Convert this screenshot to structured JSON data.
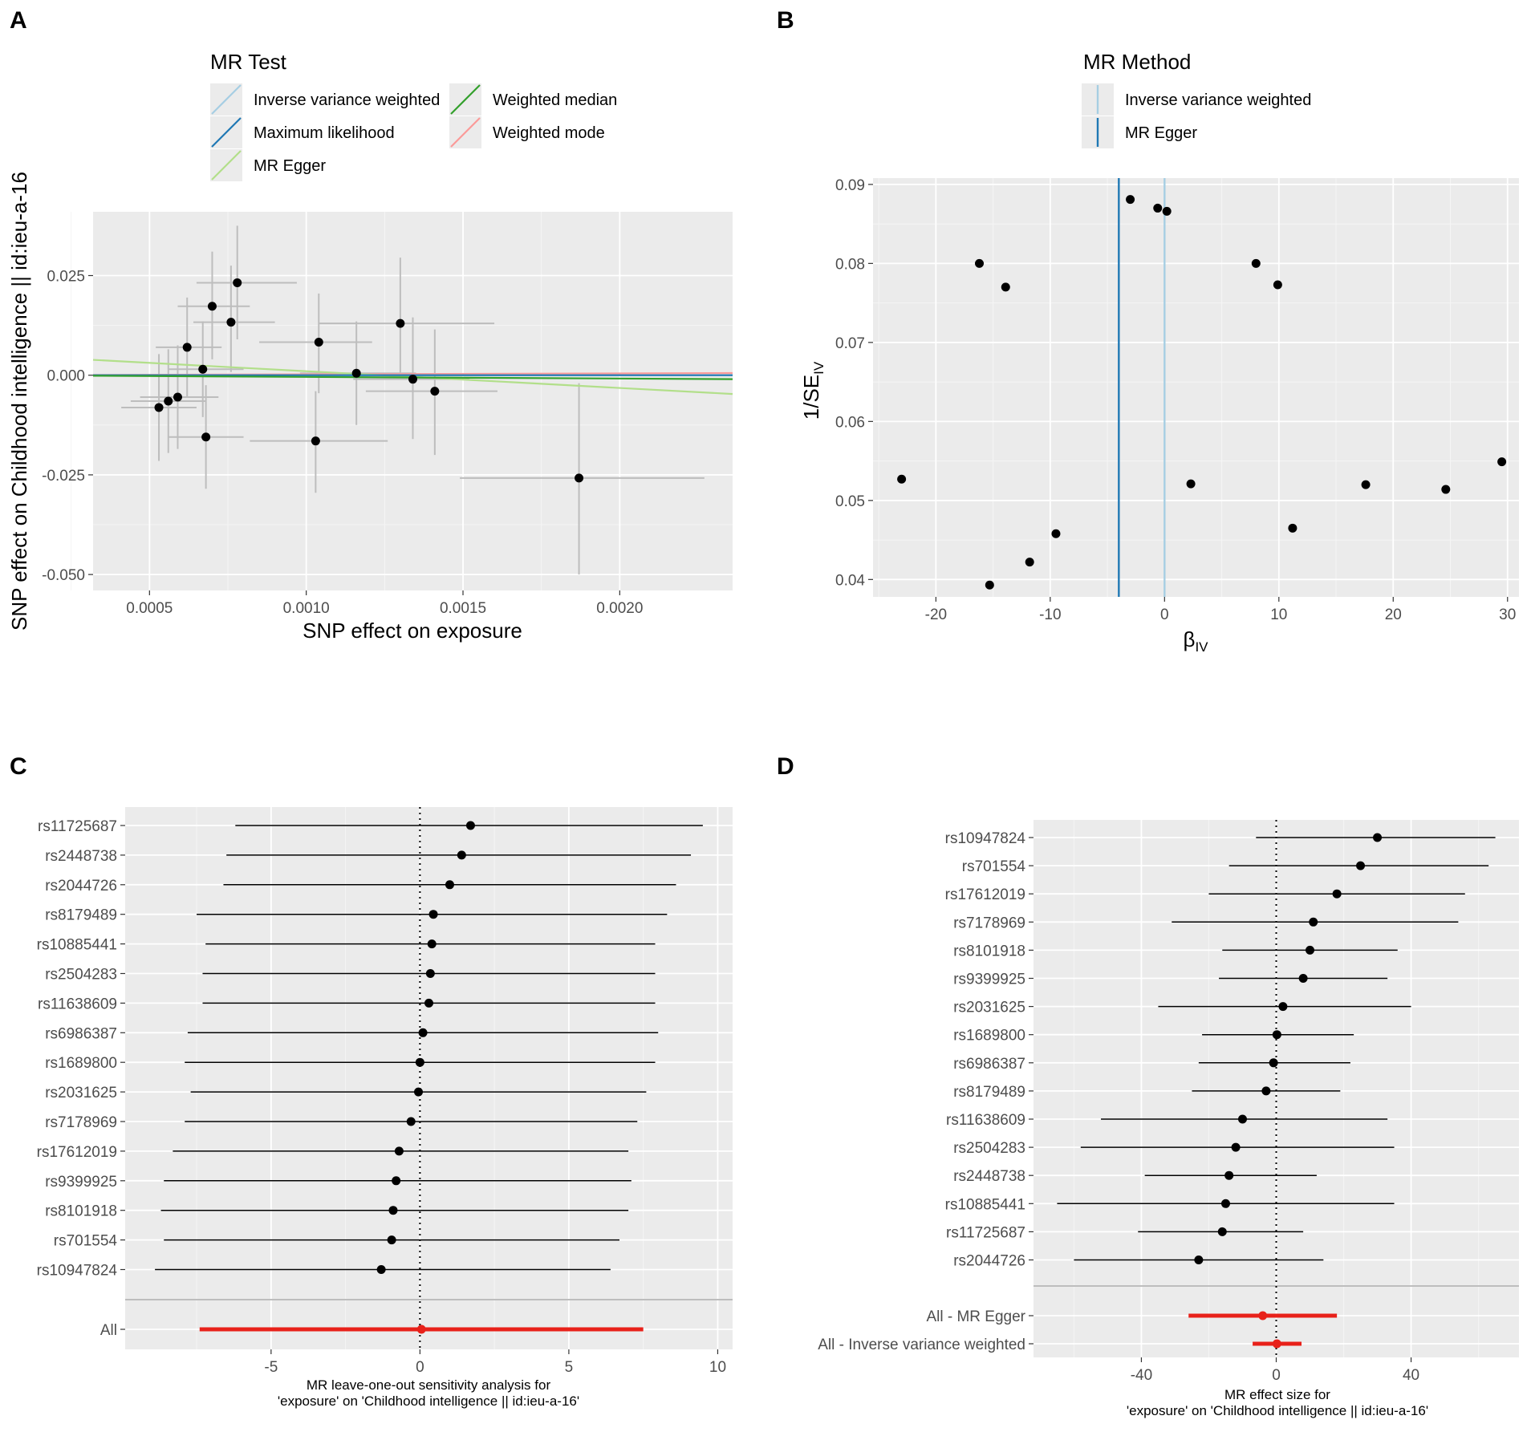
{
  "panels": {
    "A": {
      "letter": "A",
      "legend_title": "MR Test",
      "legend": [
        {
          "name": "Inverse variance weighted",
          "color": "#a6cee3"
        },
        {
          "name": "Maximum likelihood",
          "color": "#1f78b4"
        },
        {
          "name": "MR Egger",
          "color": "#b2df8a"
        },
        {
          "name": "Weighted median",
          "color": "#33a02c"
        },
        {
          "name": "Weighted mode",
          "color": "#fb9a99"
        }
      ],
      "xlabel": "SNP effect on exposure",
      "ylabel": "SNP effect on Childhood intelligence || id:ieu-a-16",
      "xlim": [
        0.00032,
        0.00236
      ],
      "ylim": [
        -0.054,
        0.041
      ],
      "xticks": [
        0.0005,
        0.001,
        0.0015,
        0.002
      ],
      "xtick_labels": [
        "0.0005",
        "0.0010",
        "0.0015",
        "0.0020"
      ],
      "yticks": [
        0.025,
        0.0,
        -0.025,
        -0.05
      ],
      "ytick_labels": [
        "0.025",
        "0.000",
        "-0.025",
        "-0.050"
      ]
    },
    "B": {
      "letter": "B",
      "legend_title": "MR Method",
      "legend": [
        {
          "name": "Inverse variance weighted",
          "color": "#a6cee3"
        },
        {
          "name": "MR Egger",
          "color": "#1f78b4"
        }
      ],
      "xlabel_main": "β",
      "xlabel_sub": "IV",
      "ylabel_main": "1/SE",
      "ylabel_sub": "IV",
      "xlim": [
        -25.5,
        31
      ],
      "ylim": [
        0.0378,
        0.0908
      ],
      "xticks": [
        -20,
        -10,
        0,
        10,
        20,
        30
      ],
      "xtick_labels": [
        "-20",
        "-10",
        "0",
        "10",
        "20",
        "30"
      ],
      "yticks": [
        0.04,
        0.05,
        0.06,
        0.07,
        0.08,
        0.09
      ],
      "ytick_labels": [
        "0.04",
        "0.05",
        "0.06",
        "0.07",
        "0.08",
        "0.09"
      ]
    },
    "C": {
      "letter": "C",
      "caption_line1": "MR leave-one-out sensitivity analysis for",
      "caption_line2": "'exposure' on 'Childhood intelligence || id:ieu-a-16'",
      "xlim": [
        -9.9,
        10.5
      ],
      "xticks": [
        -5,
        0,
        5,
        10
      ],
      "xtick_labels": [
        "-5",
        "0",
        "5",
        "10"
      ]
    },
    "D": {
      "letter": "D",
      "caption_line1": "MR effect size for",
      "caption_line2": "'exposure' on 'Childhood intelligence || id:ieu-a-16'",
      "xlim": [
        -72,
        72
      ],
      "xticks": [
        -40,
        0,
        40
      ],
      "xtick_labels": [
        "-40",
        "0",
        "40"
      ]
    }
  },
  "chart_data": [
    {
      "panel": "A",
      "type": "scatter",
      "title": "",
      "xlabel": "SNP effect on exposure",
      "ylabel": "SNP effect on Childhood intelligence || id:ieu-a-16",
      "points": [
        {
          "x": 0.00053,
          "y": -0.0081,
          "xlo": 0.00041,
          "xhi": 0.00065,
          "ylo": -0.0215,
          "yhi": 0.0053
        },
        {
          "x": 0.00056,
          "y": -0.0065,
          "xlo": 0.00044,
          "xhi": 0.00068,
          "ylo": -0.0195,
          "yhi": 0.0065
        },
        {
          "x": 0.00059,
          "y": -0.0055,
          "xlo": 0.00047,
          "xhi": 0.00072,
          "ylo": -0.0185,
          "yhi": 0.0075
        },
        {
          "x": 0.00062,
          "y": 0.007,
          "xlo": 0.00052,
          "xhi": 0.00073,
          "ylo": -0.0055,
          "yhi": 0.0195
        },
        {
          "x": 0.00067,
          "y": 0.0015,
          "xlo": 0.00056,
          "xhi": 0.0008,
          "ylo": -0.0105,
          "yhi": 0.0135
        },
        {
          "x": 0.00068,
          "y": -0.0155,
          "xlo": 0.00056,
          "xhi": 0.0008,
          "ylo": -0.0285,
          "yhi": -0.0025
        },
        {
          "x": 0.0007,
          "y": 0.0173,
          "xlo": 0.00059,
          "xhi": 0.00082,
          "ylo": 0.004,
          "yhi": 0.031
        },
        {
          "x": 0.00076,
          "y": 0.0133,
          "xlo": 0.00064,
          "xhi": 0.0009,
          "ylo": 0.0008,
          "yhi": 0.0275
        },
        {
          "x": 0.00078,
          "y": 0.0232,
          "xlo": 0.00065,
          "xhi": 0.00097,
          "ylo": 0.009,
          "yhi": 0.0375
        },
        {
          "x": 0.00103,
          "y": -0.0165,
          "xlo": 0.00082,
          "xhi": 0.00126,
          "ylo": -0.0295,
          "yhi": -0.004
        },
        {
          "x": 0.00104,
          "y": 0.0083,
          "xlo": 0.00085,
          "xhi": 0.00121,
          "ylo": -0.0045,
          "yhi": 0.0205
        },
        {
          "x": 0.00116,
          "y": 0.0005,
          "xlo": 0.00098,
          "xhi": 0.00135,
          "ylo": -0.0125,
          "yhi": 0.0135
        },
        {
          "x": 0.0013,
          "y": 0.013,
          "xlo": 0.00104,
          "xhi": 0.0016,
          "ylo": 0.0003,
          "yhi": 0.0295
        },
        {
          "x": 0.00134,
          "y": -0.001,
          "xlo": 0.00115,
          "xhi": 0.00152,
          "ylo": -0.016,
          "yhi": 0.0145
        },
        {
          "x": 0.00141,
          "y": -0.004,
          "xlo": 0.00119,
          "xhi": 0.00161,
          "ylo": -0.02,
          "yhi": 0.0115
        },
        {
          "x": 0.00187,
          "y": -0.0258,
          "xlo": 0.00149,
          "xhi": 0.00227,
          "ylo": -0.05,
          "yhi": -0.002
        }
      ],
      "lines": [
        {
          "name": "Inverse variance weighted",
          "intercept": 0,
          "slope": 0.0
        },
        {
          "name": "Maximum likelihood",
          "intercept": 0,
          "slope": 0.0
        },
        {
          "name": "MR Egger",
          "intercept": 0.0052,
          "slope": -4.2
        },
        {
          "name": "Weighted median",
          "intercept": 0,
          "slope": -0.42
        },
        {
          "name": "Weighted mode",
          "intercept": 0,
          "slope": 0.23
        }
      ]
    },
    {
      "panel": "B",
      "type": "scatter",
      "title": "",
      "xlabel": "βIV",
      "ylabel": "1/SEIV",
      "points": [
        {
          "x": -23.0,
          "y": 0.0527
        },
        {
          "x": -16.2,
          "y": 0.08
        },
        {
          "x": -15.3,
          "y": 0.0393
        },
        {
          "x": -13.9,
          "y": 0.077
        },
        {
          "x": -11.8,
          "y": 0.0422
        },
        {
          "x": -9.5,
          "y": 0.0458
        },
        {
          "x": -3.0,
          "y": 0.0881
        },
        {
          "x": -0.6,
          "y": 0.087
        },
        {
          "x": 0.2,
          "y": 0.0866
        },
        {
          "x": 2.3,
          "y": 0.0521
        },
        {
          "x": 8.0,
          "y": 0.08
        },
        {
          "x": 9.9,
          "y": 0.0773
        },
        {
          "x": 11.2,
          "y": 0.0465
        },
        {
          "x": 17.6,
          "y": 0.052
        },
        {
          "x": 24.6,
          "y": 0.0514
        },
        {
          "x": 29.5,
          "y": 0.0549
        }
      ],
      "vlines": [
        {
          "name": "MR Egger",
          "x": -4.0
        },
        {
          "name": "Inverse variance weighted",
          "x": 0.0
        }
      ]
    },
    {
      "panel": "C",
      "type": "forest",
      "title": "MR leave-one-out sensitivity analysis for 'exposure' on 'Childhood intelligence || id:ieu-a-16'",
      "rows": [
        {
          "label": "rs11725687",
          "est": 1.7,
          "lo": -6.2,
          "hi": 9.5
        },
        {
          "label": "rs2448738",
          "est": 1.4,
          "lo": -6.5,
          "hi": 9.1
        },
        {
          "label": "rs2044726",
          "est": 1.0,
          "lo": -6.6,
          "hi": 8.6
        },
        {
          "label": "rs8179489",
          "est": 0.45,
          "lo": -7.5,
          "hi": 8.3
        },
        {
          "label": "rs10885441",
          "est": 0.4,
          "lo": -7.2,
          "hi": 7.9
        },
        {
          "label": "rs2504283",
          "est": 0.35,
          "lo": -7.3,
          "hi": 7.9
        },
        {
          "label": "rs11638609",
          "est": 0.3,
          "lo": -7.3,
          "hi": 7.9
        },
        {
          "label": "rs6986387",
          "est": 0.1,
          "lo": -7.8,
          "hi": 8.0
        },
        {
          "label": "rs1689800",
          "est": 0.0,
          "lo": -7.9,
          "hi": 7.9
        },
        {
          "label": "rs2031625",
          "est": -0.05,
          "lo": -7.7,
          "hi": 7.6
        },
        {
          "label": "rs7178969",
          "est": -0.3,
          "lo": -7.9,
          "hi": 7.3
        },
        {
          "label": "rs17612019",
          "est": -0.7,
          "lo": -8.3,
          "hi": 7.0
        },
        {
          "label": "rs9399925",
          "est": -0.8,
          "lo": -8.6,
          "hi": 7.1
        },
        {
          "label": "rs8101918",
          "est": -0.9,
          "lo": -8.7,
          "hi": 7.0
        },
        {
          "label": "rs701554",
          "est": -0.95,
          "lo": -8.6,
          "hi": 6.7
        },
        {
          "label": "rs10947824",
          "est": -1.3,
          "lo": -8.9,
          "hi": 6.4
        }
      ],
      "summary": [
        {
          "label": "All",
          "est": 0.05,
          "lo": -7.4,
          "hi": 7.5
        }
      ],
      "xlim": [
        -9.9,
        10.5
      ]
    },
    {
      "panel": "D",
      "type": "forest",
      "title": "MR effect size for 'exposure' on 'Childhood intelligence || id:ieu-a-16'",
      "rows": [
        {
          "label": "rs10947824",
          "est": 30,
          "lo": -6,
          "hi": 65
        },
        {
          "label": "rs701554",
          "est": 25,
          "lo": -14,
          "hi": 63
        },
        {
          "label": "rs17612019",
          "est": 18,
          "lo": -20,
          "hi": 56
        },
        {
          "label": "rs7178969",
          "est": 11,
          "lo": -31,
          "hi": 54
        },
        {
          "label": "rs8101918",
          "est": 10,
          "lo": -16,
          "hi": 36
        },
        {
          "label": "rs9399925",
          "est": 8,
          "lo": -17,
          "hi": 33
        },
        {
          "label": "rs2031625",
          "est": 2,
          "lo": -35,
          "hi": 40
        },
        {
          "label": "rs1689800",
          "est": 0.2,
          "lo": -22,
          "hi": 23
        },
        {
          "label": "rs6986387",
          "est": -0.8,
          "lo": -23,
          "hi": 22
        },
        {
          "label": "rs8179489",
          "est": -3,
          "lo": -25,
          "hi": 19
        },
        {
          "label": "rs11638609",
          "est": -10,
          "lo": -52,
          "hi": 33
        },
        {
          "label": "rs2504283",
          "est": -12,
          "lo": -58,
          "hi": 35
        },
        {
          "label": "rs2448738",
          "est": -14,
          "lo": -39,
          "hi": 12
        },
        {
          "label": "rs10885441",
          "est": -15,
          "lo": -65,
          "hi": 35
        },
        {
          "label": "rs11725687",
          "est": -16,
          "lo": -41,
          "hi": 8
        },
        {
          "label": "rs2044726",
          "est": -23,
          "lo": -60,
          "hi": 14
        }
      ],
      "summary": [
        {
          "label": "All - MR Egger",
          "est": -4,
          "lo": -26,
          "hi": 18,
          "color": "#e8211a"
        },
        {
          "label": "All - Inverse variance weighted",
          "est": 0.2,
          "lo": -7,
          "hi": 7.5,
          "color": "#e8211a"
        }
      ],
      "xlim": [
        -72,
        72
      ]
    }
  ]
}
